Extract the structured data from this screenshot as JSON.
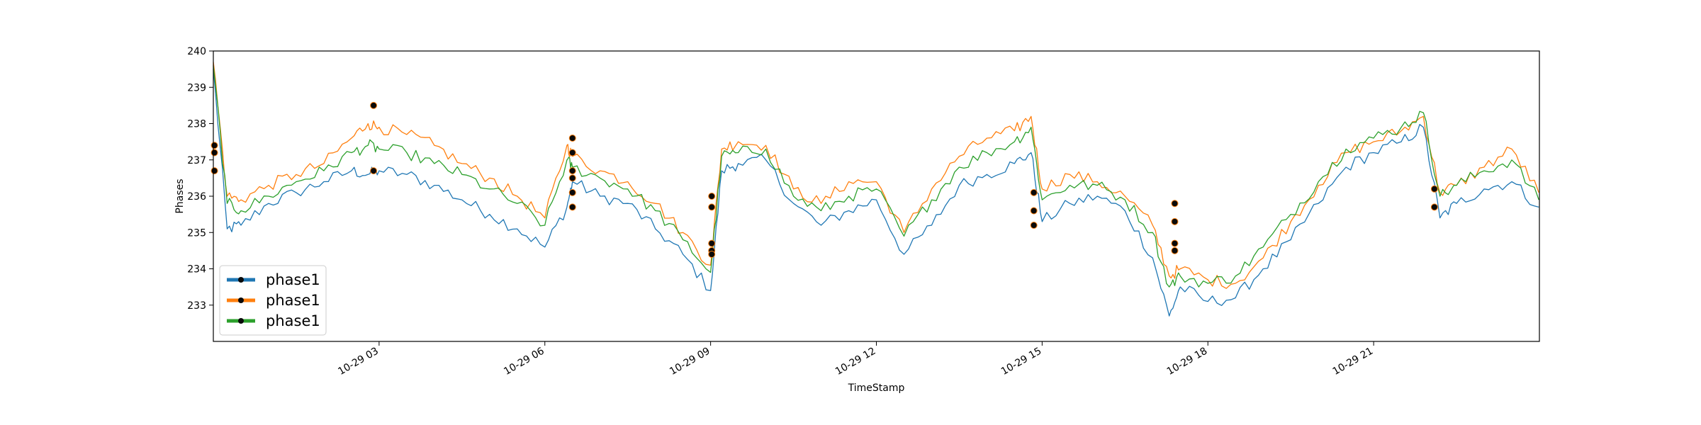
{
  "chart_data": {
    "type": "line",
    "title": "",
    "xlabel": "TimeStamp",
    "ylabel": "Phases",
    "x_range": [
      "10-29 00:00",
      "10-29 23:59"
    ],
    "ylim": [
      232.0,
      240.0
    ],
    "yticks": [
      233,
      234,
      235,
      236,
      237,
      238,
      239,
      240
    ],
    "ytick_labels": [
      "233",
      "234",
      "235",
      "236",
      "237",
      "238",
      "239",
      "240"
    ],
    "xticks_hours": [
      3,
      6,
      9,
      12,
      15,
      18,
      21
    ],
    "xtick_labels": [
      "10-29 03",
      "10-29 06",
      "10-29 09",
      "10-29 12",
      "10-29 15",
      "10-29 18",
      "10-29 21"
    ],
    "grid": false,
    "legend_position": "lower-left",
    "x_hours": [
      0,
      0.25,
      0.5,
      1,
      1.5,
      2,
      2.5,
      2.8,
      3,
      3.5,
      4,
      4.5,
      5,
      5.5,
      6,
      6.4,
      6.5,
      7,
      7.5,
      8,
      8.5,
      9,
      9.2,
      9.5,
      10,
      10.5,
      11,
      11.5,
      12,
      12.5,
      13,
      13.5,
      14,
      14.5,
      14.8,
      15,
      15.5,
      16,
      16.5,
      17,
      17.3,
      17.5,
      18,
      18.5,
      19,
      19.5,
      20,
      20.5,
      21,
      21.5,
      21.9,
      22.2,
      22.5,
      23,
      23.5,
      23.99
    ],
    "series": [
      {
        "name": "phase1",
        "color": "#1f77b4",
        "values": [
          239.5,
          235.1,
          235.2,
          235.8,
          236.1,
          236.4,
          236.7,
          236.6,
          236.7,
          236.6,
          236.3,
          235.9,
          235.5,
          235.1,
          234.6,
          235.7,
          236.4,
          236.0,
          235.8,
          235.1,
          234.4,
          233.4,
          236.7,
          236.9,
          237.0,
          235.8,
          235.2,
          235.6,
          235.9,
          234.4,
          235.2,
          236.3,
          236.6,
          236.9,
          237.2,
          235.3,
          235.8,
          236.0,
          235.6,
          234.3,
          232.7,
          233.5,
          233.1,
          233.2,
          234.0,
          234.8,
          235.8,
          236.8,
          237.2,
          237.5,
          237.9,
          235.4,
          235.8,
          236.2,
          236.4,
          235.7
        ]
      },
      {
        "name": "phase1",
        "color": "#ff7f0e",
        "values": [
          239.7,
          236.0,
          235.9,
          236.3,
          236.6,
          236.9,
          237.6,
          238.0,
          237.9,
          237.7,
          237.4,
          236.9,
          236.5,
          236.0,
          235.4,
          237.4,
          237.1,
          236.7,
          236.4,
          235.8,
          235.0,
          234.1,
          237.3,
          237.5,
          237.4,
          236.2,
          235.8,
          236.4,
          236.4,
          235.0,
          236.2,
          237.1,
          237.6,
          237.8,
          238.2,
          236.2,
          236.6,
          236.4,
          236.0,
          235.2,
          233.8,
          234.0,
          233.7,
          233.6,
          234.3,
          235.3,
          236.3,
          237.2,
          237.5,
          237.8,
          238.2,
          236.1,
          236.3,
          236.8,
          237.3,
          236.1
        ]
      },
      {
        "name": "phase1",
        "color": "#2ca02c",
        "values": [
          239.6,
          235.8,
          235.6,
          236.0,
          236.4,
          236.7,
          237.2,
          237.4,
          237.3,
          237.2,
          236.9,
          236.6,
          236.2,
          235.8,
          235.2,
          237.0,
          236.8,
          236.5,
          236.2,
          235.6,
          234.8,
          233.9,
          237.1,
          237.2,
          237.3,
          236.0,
          235.6,
          236.0,
          236.2,
          234.9,
          235.9,
          236.8,
          237.2,
          237.5,
          237.9,
          235.9,
          236.3,
          236.3,
          235.9,
          235.0,
          233.5,
          233.8,
          233.6,
          233.8,
          234.6,
          235.5,
          236.4,
          237.3,
          237.6,
          237.9,
          238.3,
          236.0,
          236.3,
          236.7,
          237.0,
          235.9
        ]
      }
    ],
    "markers": [
      {
        "x": 0.02,
        "y": 237.4
      },
      {
        "x": 0.02,
        "y": 237.2
      },
      {
        "x": 0.02,
        "y": 236.7
      },
      {
        "x": 2.9,
        "y": 238.5
      },
      {
        "x": 2.9,
        "y": 236.7
      },
      {
        "x": 6.5,
        "y": 237.6
      },
      {
        "x": 6.5,
        "y": 237.2
      },
      {
        "x": 6.5,
        "y": 236.7
      },
      {
        "x": 6.5,
        "y": 236.5
      },
      {
        "x": 6.5,
        "y": 236.1
      },
      {
        "x": 6.5,
        "y": 235.7
      },
      {
        "x": 9.02,
        "y": 236.0
      },
      {
        "x": 9.02,
        "y": 235.7
      },
      {
        "x": 9.02,
        "y": 234.7
      },
      {
        "x": 9.02,
        "y": 234.5
      },
      {
        "x": 9.02,
        "y": 234.4
      },
      {
        "x": 14.85,
        "y": 236.1
      },
      {
        "x": 14.85,
        "y": 235.6
      },
      {
        "x": 14.85,
        "y": 235.2
      },
      {
        "x": 17.4,
        "y": 235.8
      },
      {
        "x": 17.4,
        "y": 235.3
      },
      {
        "x": 17.4,
        "y": 234.7
      },
      {
        "x": 17.4,
        "y": 234.5
      },
      {
        "x": 22.1,
        "y": 236.2
      },
      {
        "x": 22.1,
        "y": 235.7
      }
    ]
  },
  "legend": {
    "entries": [
      {
        "label": "phase1",
        "color": "#1f77b4"
      },
      {
        "label": "phase1",
        "color": "#ff7f0e"
      },
      {
        "label": "phase1",
        "color": "#2ca02c"
      }
    ]
  }
}
